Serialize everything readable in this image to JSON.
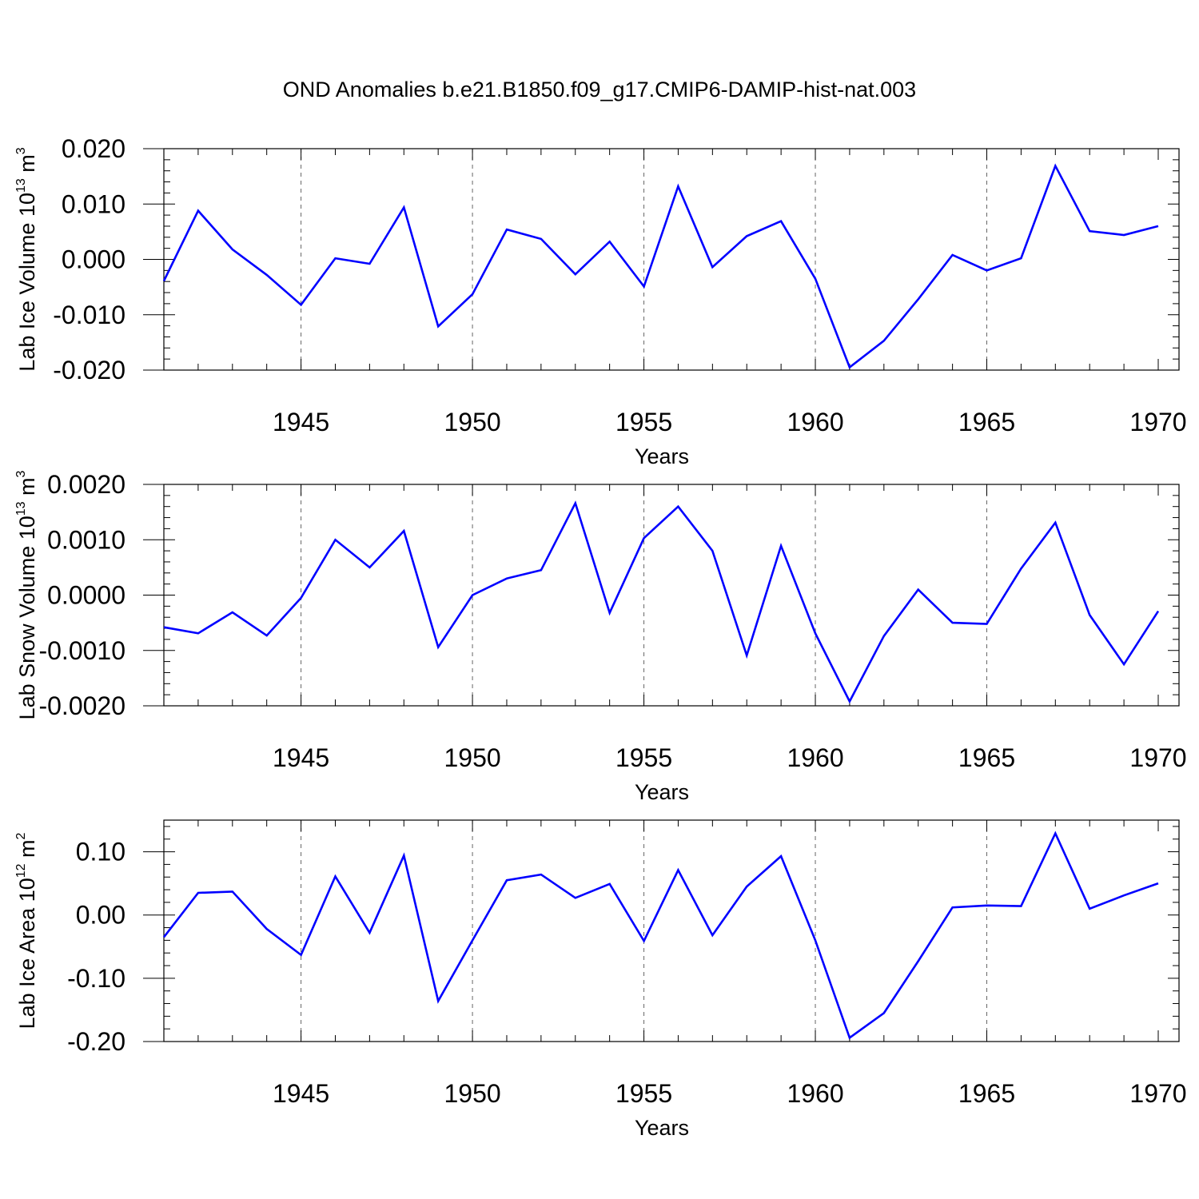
{
  "title": "OND Anomalies b.e21.B1850.f09_g17.CMIP6-DAMIP-hist-nat.003",
  "line_color": "#0000ff",
  "chart_data": [
    {
      "type": "line",
      "xlabel": "Years",
      "ylabel": {
        "main": "Lab Ice Volume 10",
        "sup": "13",
        "mid": " m",
        "sup2": "3"
      },
      "xlim": [
        1941,
        1970
      ],
      "ylim": [
        -0.02,
        0.02
      ],
      "xticks": [
        1945,
        1950,
        1955,
        1960,
        1965,
        1970
      ],
      "yticks": [
        -0.02,
        -0.01,
        0.0,
        0.01,
        0.02
      ],
      "ytick_labels": [
        "-0.020",
        "-0.010",
        "0.000",
        "0.010",
        "0.020"
      ],
      "x": [
        1941,
        1942,
        1943,
        1944,
        1945,
        1946,
        1947,
        1948,
        1949,
        1950,
        1951,
        1952,
        1953,
        1954,
        1955,
        1956,
        1957,
        1958,
        1959,
        1960,
        1961,
        1962,
        1963,
        1964,
        1965,
        1966,
        1967,
        1968,
        1969,
        1970
      ],
      "values": [
        -0.0039,
        0.0088,
        0.0018,
        -0.0028,
        -0.0082,
        0.0002,
        -0.0008,
        0.0094,
        -0.0121,
        -0.0063,
        0.0054,
        0.0037,
        -0.0027,
        0.0032,
        -0.0049,
        0.0132,
        -0.0014,
        0.0042,
        0.0069,
        -0.0035,
        -0.0195,
        -0.0147,
        -0.0072,
        0.0008,
        -0.002,
        0.0002,
        0.0169,
        0.0051,
        0.0044,
        0.006
      ]
    },
    {
      "type": "line",
      "xlabel": "Years",
      "ylabel": {
        "main": "Lab Snow Volume 10",
        "sup": "13",
        "mid": " m",
        "sup2": "3"
      },
      "xlim": [
        1941,
        1970
      ],
      "ylim": [
        -0.002,
        0.002
      ],
      "xticks": [
        1945,
        1950,
        1955,
        1960,
        1965,
        1970
      ],
      "yticks": [
        -0.002,
        -0.001,
        0.0,
        0.001,
        0.002
      ],
      "ytick_labels": [
        "-0.0020",
        "-0.0010",
        "0.0000",
        "0.0010",
        "0.0020"
      ],
      "x": [
        1941,
        1942,
        1943,
        1944,
        1945,
        1946,
        1947,
        1948,
        1949,
        1950,
        1951,
        1952,
        1953,
        1954,
        1955,
        1956,
        1957,
        1958,
        1959,
        1960,
        1961,
        1962,
        1963,
        1964,
        1965,
        1966,
        1967,
        1968,
        1969,
        1970
      ],
      "values": [
        -0.00058,
        -0.00069,
        -0.00031,
        -0.00073,
        -5e-05,
        0.001,
        0.0005,
        0.00116,
        -0.00094,
        0.0,
        0.0003,
        0.00045,
        0.00166,
        -0.00032,
        0.00103,
        0.0016,
        0.0008,
        -0.00109,
        0.00089,
        -0.00069,
        -0.00192,
        -0.00074,
        0.0001,
        -0.0005,
        -0.00052,
        0.00048,
        0.00131,
        -0.00036,
        -0.00125,
        -0.00029
      ]
    },
    {
      "type": "line",
      "xlabel": "Years",
      "ylabel": {
        "main": "Lab Ice Area 10",
        "sup": "12",
        "mid": " m",
        "sup2": "2"
      },
      "xlim": [
        1941,
        1970
      ],
      "ylim": [
        -0.2,
        0.15
      ],
      "xticks": [
        1945,
        1950,
        1955,
        1960,
        1965,
        1970
      ],
      "yticks": [
        -0.2,
        -0.1,
        0.0,
        0.1
      ],
      "ytick_labels": [
        "-0.20",
        "-0.10",
        "0.00",
        "0.10"
      ],
      "x": [
        1941,
        1942,
        1943,
        1944,
        1945,
        1946,
        1947,
        1948,
        1949,
        1950,
        1951,
        1952,
        1953,
        1954,
        1955,
        1956,
        1957,
        1958,
        1959,
        1960,
        1961,
        1962,
        1963,
        1964,
        1965,
        1966,
        1967,
        1968,
        1969,
        1970
      ],
      "values": [
        -0.035,
        0.035,
        0.037,
        -0.022,
        -0.063,
        0.061,
        -0.028,
        0.094,
        -0.136,
        -0.04,
        0.055,
        0.064,
        0.027,
        0.049,
        -0.041,
        0.071,
        -0.032,
        0.045,
        0.093,
        -0.04,
        -0.194,
        -0.155,
        -0.073,
        0.012,
        0.015,
        0.014,
        0.129,
        0.01,
        0.031,
        0.05
      ]
    }
  ]
}
